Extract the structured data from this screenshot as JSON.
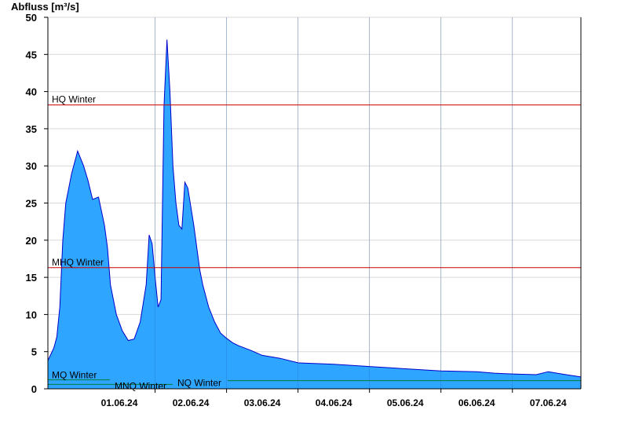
{
  "chart_data": {
    "type": "area",
    "ylabel": "Abfluss [m³/s]",
    "ylim": [
      0,
      50
    ],
    "yticks": [
      0,
      5,
      10,
      15,
      20,
      25,
      30,
      35,
      40,
      45,
      50
    ],
    "xlim": [
      "31.05.24 12:00",
      "07.06.24 23:00"
    ],
    "xtick_labels": [
      "01.06.24",
      "02.06.24",
      "03.06.24",
      "04.06.24",
      "05.06.24",
      "06.06.24",
      "07.06.24"
    ],
    "grid": true,
    "colors": {
      "area": "#2ea6ff",
      "line": "#0000cc",
      "hq": "#cc0000",
      "mhq": "#cc0000",
      "mq": "#007a3d",
      "mnq": "#007a3d",
      "nq": "#007a3d"
    },
    "reference_lines": [
      {
        "label": "HQ Winter",
        "value": 38.2,
        "color": "#cc0000"
      },
      {
        "label": "MHQ Winter",
        "value": 16.3,
        "color": "#cc0000"
      },
      {
        "label": "MQ Winter",
        "value": 1.2,
        "color": "#007a3d"
      },
      {
        "label": "MNQ Winter",
        "value": 0.6,
        "color": "#007a3d"
      },
      {
        "label": "NQ Winter",
        "value": 1.1,
        "color": "#007a3d"
      }
    ],
    "series": [
      {
        "x": [
          "31.05.24 12:00",
          "31.05.24 14:00",
          "31.05.24 15:00",
          "31.05.24 16:00",
          "31.05.24 17:00",
          "31.05.24 18:00",
          "31.05.24 20:00",
          "31.05.24 22:00",
          "01.06.24 00:00",
          "01.06.24 01:30",
          "01.06.24 03:00",
          "01.06.24 05:00",
          "01.06.24 07:00",
          "01.06.24 08:00",
          "01.06.24 09:00",
          "01.06.24 11:00",
          "01.06.24 13:00",
          "01.06.24 15:00",
          "01.06.24 17:00",
          "01.06.24 19:00",
          "01.06.24 21:00",
          "01.06.24 22:00",
          "01.06.24 23:00",
          "02.06.24 00:00",
          "02.06.24 01:00",
          "02.06.24 02:00",
          "02.06.24 03:00",
          "02.06.24 04:00",
          "02.06.24 05:00",
          "02.06.24 06:00",
          "02.06.24 07:00",
          "02.06.24 08:00",
          "02.06.24 09:00",
          "02.06.24 10:00",
          "02.06.24 11:00",
          "02.06.24 13:00",
          "02.06.24 14:00",
          "02.06.24 15:00",
          "02.06.24 16:00",
          "02.06.24 18:00",
          "02.06.24 20:00",
          "02.06.24 22:00",
          "03.06.24 00:00",
          "03.06.24 02:00",
          "03.06.24 04:00",
          "03.06.24 08:00",
          "03.06.24 12:00",
          "03.06.24 18:00",
          "04.06.24 00:00",
          "04.06.24 12:00",
          "05.06.24 00:00",
          "05.06.24 12:00",
          "06.06.24 00:00",
          "06.06.24 12:00",
          "06.06.24 18:00",
          "07.06.24 00:00",
          "07.06.24 08:00",
          "07.06.24 12:00",
          "07.06.24 18:00",
          "07.06.24 23:00"
        ],
        "values": [
          3.8,
          5.5,
          7,
          11,
          20,
          25,
          29,
          32,
          30,
          28,
          25.5,
          25.8,
          22,
          19,
          14,
          10,
          7.8,
          6.5,
          6.7,
          9,
          14,
          20.7,
          19.5,
          15,
          11,
          12,
          38,
          47,
          40,
          30,
          25,
          22,
          21.5,
          27.8,
          27,
          22,
          19,
          16,
          14,
          11,
          9,
          7.5,
          6.8,
          6.2,
          5.8,
          5.2,
          4.5,
          4.1,
          3.5,
          3.3,
          3,
          2.7,
          2.4,
          2.3,
          2.1,
          2,
          1.9,
          2.3,
          1.9,
          1.6
        ]
      }
    ]
  }
}
